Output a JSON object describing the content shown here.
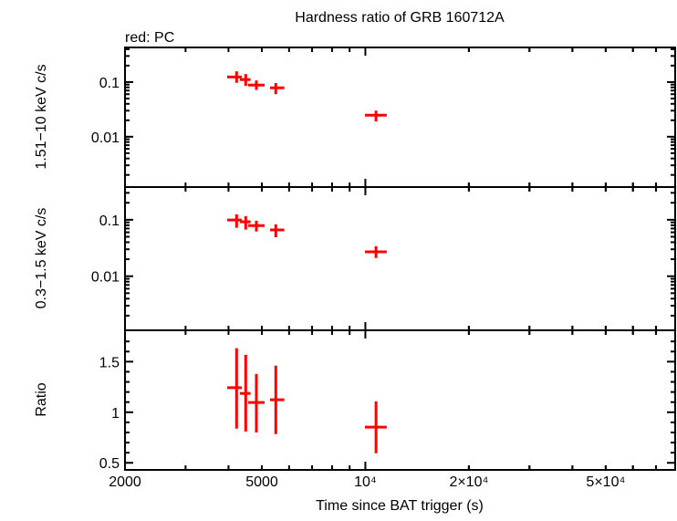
{
  "chart_data": [
    {
      "type": "scatter",
      "title": "Hardness ratio of GRB 160712A",
      "legend_text": "red: PC",
      "ylabel": "1.51−10 keV c/s",
      "yscale": "log",
      "ylim": [
        0.0012,
        0.43
      ],
      "ytick_labels": [
        "0.1",
        "0.01"
      ],
      "series": [
        {
          "color": "#ff0000",
          "x": [
            4222,
            4488,
            4820,
            5490,
            10740
          ],
          "xerr_low": [
            3963,
            4317,
            4560,
            5282,
            9974
          ],
          "xerr_high": [
            4370,
            4636,
            5093,
            5812,
            11540
          ],
          "y": [
            0.124,
            0.111,
            0.088,
            0.0785,
            0.0248
          ],
          "yerr_low": [
            0.097,
            0.085,
            0.072,
            0.06,
            0.019
          ],
          "yerr_high": [
            0.157,
            0.14,
            0.107,
            0.096,
            0.03
          ]
        }
      ]
    },
    {
      "type": "scatter",
      "ylabel": "0.3−1.5 keV c/s",
      "yscale": "log",
      "ylim": [
        0.0011,
        0.38
      ],
      "ytick_labels": [
        "0.1",
        "0.01"
      ],
      "series": [
        {
          "color": "#ff0000",
          "x": [
            4222,
            4488,
            4820,
            5490,
            10740
          ],
          "xerr_low": [
            3963,
            4317,
            4560,
            5282,
            9974
          ],
          "xerr_high": [
            4370,
            4636,
            5093,
            5812,
            11540
          ],
          "y": [
            0.099,
            0.092,
            0.079,
            0.066,
            0.027
          ],
          "yerr_low": [
            0.072,
            0.067,
            0.062,
            0.049,
            0.021
          ],
          "yerr_high": [
            0.125,
            0.116,
            0.096,
            0.083,
            0.034
          ]
        }
      ]
    },
    {
      "type": "scatter",
      "ylabel": "Ratio",
      "yscale": "linear",
      "ylim": [
        0.43,
        1.81
      ],
      "ytick_labels": [
        "1.5",
        "1",
        "0.5"
      ],
      "xlabel": "Time since BAT trigger (s)",
      "xscale": "log",
      "xlim": [
        2000,
        79600
      ],
      "xtick_labels": [
        "2000",
        "5000",
        "10⁴",
        "2×10⁴",
        "5×10⁴"
      ],
      "series": [
        {
          "color": "#ff0000",
          "x": [
            4222,
            4488,
            4820,
            5490,
            10740
          ],
          "xerr_low": [
            3963,
            4317,
            4560,
            5282,
            9974
          ],
          "xerr_high": [
            4370,
            4636,
            5093,
            5812,
            11540
          ],
          "y": [
            1.243,
            1.186,
            1.096,
            1.123,
            0.853
          ],
          "yerr_low": [
            0.838,
            0.81,
            0.8,
            0.784,
            0.595
          ],
          "yerr_high": [
            1.633,
            1.568,
            1.378,
            1.46,
            1.108
          ]
        }
      ]
    }
  ]
}
